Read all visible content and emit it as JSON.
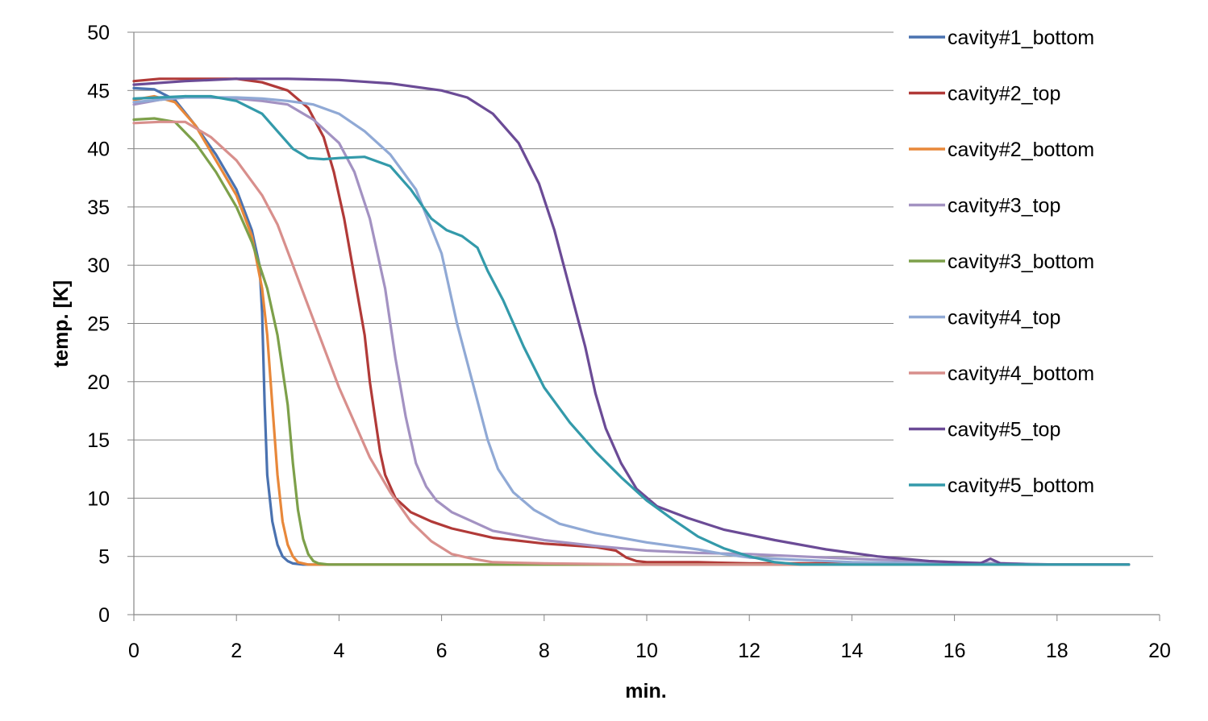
{
  "chart_data": {
    "type": "line",
    "title": "",
    "xlabel": "min.",
    "ylabel": "temp. [K]",
    "xlim": [
      0,
      20
    ],
    "ylim": [
      0,
      50
    ],
    "xticks": [
      0,
      2,
      4,
      6,
      8,
      10,
      12,
      14,
      16,
      18,
      20
    ],
    "yticks": [
      0,
      5,
      10,
      15,
      20,
      25,
      30,
      35,
      40,
      45,
      50
    ],
    "grid": "horizontal",
    "legend_position": "right",
    "series": [
      {
        "name": "cavity#1_bottom",
        "color": "#4a72b0",
        "x": [
          0,
          0.4,
          0.8,
          1.2,
          1.6,
          2.0,
          2.3,
          2.45,
          2.5,
          2.55,
          2.6,
          2.7,
          2.8,
          2.9,
          3.0,
          3.1,
          3.3,
          3.6,
          4,
          6,
          8,
          10,
          12,
          14,
          16,
          18,
          19.4
        ],
        "y": [
          45.2,
          45.1,
          44.2,
          42,
          39.5,
          36.5,
          33,
          30,
          26,
          18,
          12,
          8,
          6,
          5,
          4.6,
          4.4,
          4.3,
          4.3,
          4.3,
          4.3,
          4.3,
          4.3,
          4.3,
          4.3,
          4.3,
          4.3,
          4.3
        ]
      },
      {
        "name": "cavity#2_top",
        "color": "#b13a38",
        "x": [
          0,
          0.5,
          1,
          1.5,
          2.0,
          2.5,
          3.0,
          3.4,
          3.7,
          3.9,
          4.1,
          4.3,
          4.5,
          4.6,
          4.7,
          4.8,
          4.9,
          5.1,
          5.4,
          5.8,
          6.2,
          7.0,
          8.0,
          9.0,
          9.4,
          9.6,
          9.8,
          10,
          11,
          12,
          14,
          16,
          18,
          19.4
        ],
        "y": [
          45.8,
          46,
          46,
          46,
          46,
          45.7,
          45,
          43.5,
          41,
          38,
          34,
          29,
          24,
          20,
          17,
          14,
          12,
          10,
          8.8,
          8,
          7.4,
          6.6,
          6.1,
          5.8,
          5.5,
          4.9,
          4.6,
          4.5,
          4.5,
          4.4,
          4.4,
          4.4,
          4.3,
          4.3
        ]
      },
      {
        "name": "cavity#2_bottom",
        "color": "#e8883a",
        "x": [
          0,
          0.4,
          0.8,
          1.2,
          1.6,
          2.0,
          2.3,
          2.5,
          2.6,
          2.7,
          2.8,
          2.9,
          3.0,
          3.1,
          3.2,
          3.4,
          3.6,
          4,
          6,
          8,
          10,
          12,
          14,
          16,
          18,
          19.4
        ],
        "y": [
          44.2,
          44.5,
          44,
          42,
          39,
          36,
          32.5,
          28,
          24,
          18,
          12,
          8,
          6,
          5,
          4.5,
          4.3,
          4.3,
          4.3,
          4.3,
          4.3,
          4.3,
          4.3,
          4.3,
          4.3,
          4.3,
          4.3
        ]
      },
      {
        "name": "cavity#3_top",
        "color": "#a392c2",
        "x": [
          0,
          0.5,
          1,
          1.5,
          2,
          2.5,
          3,
          3.5,
          4.0,
          4.3,
          4.6,
          4.9,
          5.1,
          5.3,
          5.5,
          5.7,
          5.9,
          6.2,
          6.6,
          7.0,
          8,
          9,
          10,
          11,
          12,
          14,
          16,
          18,
          19.4
        ],
        "y": [
          43.8,
          44.2,
          44.5,
          44.4,
          44.3,
          44.1,
          43.8,
          42.5,
          40.5,
          38,
          34,
          28,
          22,
          17,
          13,
          11,
          9.8,
          8.8,
          8,
          7.2,
          6.4,
          5.9,
          5.5,
          5.3,
          5.2,
          4.8,
          4.5,
          4.3,
          4.3
        ]
      },
      {
        "name": "cavity#3_bottom",
        "color": "#7da04a",
        "x": [
          0,
          0.4,
          0.8,
          1.2,
          1.6,
          2.0,
          2.3,
          2.6,
          2.8,
          3.0,
          3.1,
          3.2,
          3.3,
          3.4,
          3.5,
          3.6,
          3.8,
          4,
          6,
          8,
          10,
          12,
          14,
          16,
          18,
          19.4
        ],
        "y": [
          42.5,
          42.6,
          42.3,
          40.5,
          38,
          35,
          32,
          28,
          24,
          18,
          13,
          9,
          6.5,
          5.2,
          4.6,
          4.4,
          4.3,
          4.3,
          4.3,
          4.3,
          4.3,
          4.3,
          4.3,
          4.3,
          4.3,
          4.3
        ]
      },
      {
        "name": "cavity#4_top",
        "color": "#90a9d5",
        "x": [
          0,
          0.5,
          1,
          1.5,
          2,
          2.5,
          3,
          3.5,
          4,
          4.5,
          5,
          5.5,
          6.0,
          6.3,
          6.6,
          6.9,
          7.1,
          7.4,
          7.8,
          8.3,
          9,
          10,
          11,
          11.5,
          12,
          14,
          16,
          18,
          19.4
        ],
        "y": [
          44,
          44.2,
          44.4,
          44.4,
          44.4,
          44.3,
          44.1,
          43.8,
          43,
          41.5,
          39.5,
          36.5,
          31,
          25,
          20,
          15,
          12.5,
          10.5,
          9,
          7.8,
          7,
          6.2,
          5.6,
          5.2,
          4.9,
          4.5,
          4.4,
          4.3,
          4.3
        ]
      },
      {
        "name": "cavity#4_bottom",
        "color": "#d88f8c",
        "x": [
          0,
          0.5,
          1,
          1.5,
          2,
          2.5,
          2.8,
          3.1,
          3.4,
          3.7,
          4.0,
          4.3,
          4.6,
          5.0,
          5.4,
          5.8,
          6.2,
          6.6,
          7,
          8,
          10,
          12,
          14,
          16,
          18,
          19.4
        ],
        "y": [
          42.2,
          42.3,
          42.3,
          41,
          39,
          36,
          33.5,
          30,
          26.5,
          23,
          19.5,
          16.5,
          13.5,
          10.5,
          8,
          6.3,
          5.2,
          4.8,
          4.5,
          4.4,
          4.3,
          4.3,
          4.3,
          4.3,
          4.3,
          4.3
        ]
      },
      {
        "name": "cavity#5_top",
        "color": "#6b4b96",
        "x": [
          0,
          1,
          2,
          3,
          4,
          5,
          6,
          6.5,
          7,
          7.5,
          7.9,
          8.2,
          8.5,
          8.8,
          9.0,
          9.2,
          9.5,
          9.8,
          10.2,
          10.8,
          11.5,
          12.5,
          13.5,
          14.5,
          15.5,
          16.5,
          16.7,
          16.9,
          17.5,
          18.5,
          19.4
        ],
        "y": [
          45.5,
          45.8,
          46,
          46,
          45.9,
          45.6,
          45,
          44.4,
          43,
          40.5,
          37,
          33,
          28,
          23,
          19,
          16,
          13,
          10.8,
          9.3,
          8.3,
          7.3,
          6.4,
          5.6,
          5.0,
          4.6,
          4.4,
          4.8,
          4.4,
          4.3,
          4.3,
          4.3
        ]
      },
      {
        "name": "cavity#5_bottom",
        "color": "#339aaa",
        "x": [
          0,
          0.5,
          1,
          1.5,
          2.0,
          2.5,
          2.8,
          3.1,
          3.4,
          3.7,
          4.0,
          4.5,
          5.0,
          5.4,
          5.8,
          6.1,
          6.4,
          6.7,
          6.9,
          7.2,
          7.6,
          8.0,
          8.5,
          9.0,
          9.5,
          10.0,
          10.5,
          11.0,
          11.5,
          12.0,
          12.5,
          13,
          14,
          16,
          18,
          19.4
        ],
        "y": [
          44.3,
          44.4,
          44.5,
          44.5,
          44.1,
          43,
          41.5,
          40,
          39.2,
          39.1,
          39.2,
          39.3,
          38.5,
          36.5,
          34,
          33,
          32.5,
          31.5,
          29.5,
          27,
          23,
          19.5,
          16.5,
          14,
          11.8,
          9.8,
          8.2,
          6.7,
          5.7,
          5,
          4.5,
          4.3,
          4.3,
          4.3,
          4.3,
          4.3
        ]
      }
    ]
  }
}
